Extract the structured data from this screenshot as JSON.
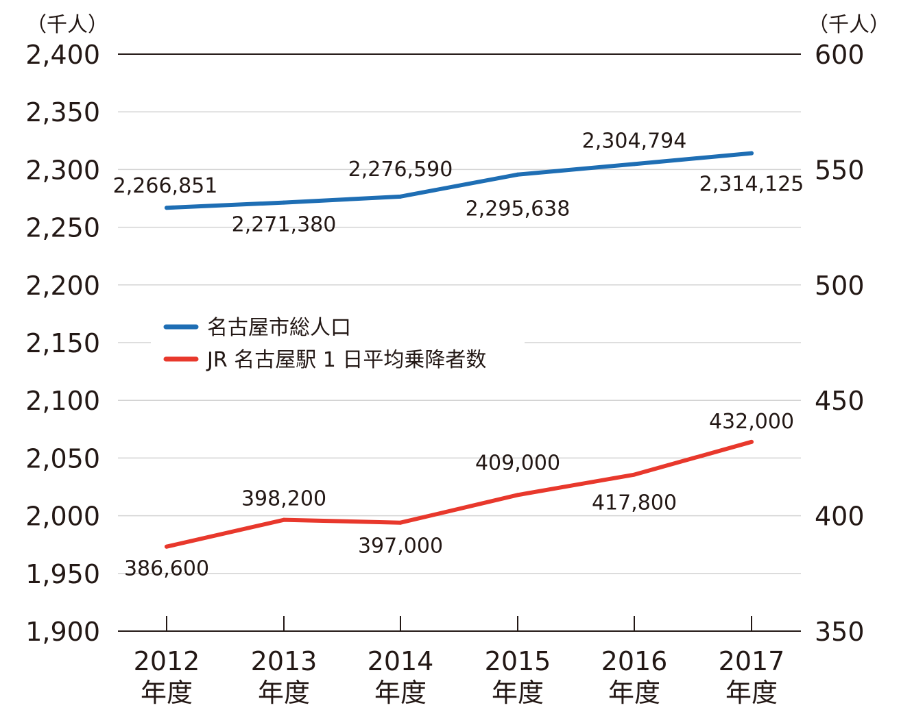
{
  "chart_data": {
    "type": "line",
    "left_unit": "（千人）",
    "right_unit": "（千人）",
    "categories": [
      "2012",
      "2013",
      "2014",
      "2015",
      "2016",
      "2017"
    ],
    "category_suffix": "年度",
    "left_axis": {
      "ylim": [
        1900,
        2400
      ],
      "ticks": [
        1900,
        1950,
        2000,
        2050,
        2100,
        2150,
        2200,
        2250,
        2300,
        2350,
        2400
      ],
      "tick_labels": [
        "1,900",
        "1,950",
        "2,000",
        "2,050",
        "2,100",
        "2,150",
        "2,200",
        "2,250",
        "2,300",
        "2,350",
        "2,400"
      ]
    },
    "right_axis": {
      "ylim": [
        350,
        600
      ],
      "ticks": [
        350,
        400,
        450,
        500,
        550,
        600
      ],
      "tick_labels": [
        "350",
        "400",
        "450",
        "500",
        "550",
        "600"
      ]
    },
    "grid": true,
    "legend_position": "center-left",
    "series": [
      {
        "name": "名古屋市総人口",
        "axis": "left",
        "color": "#1e6eb4",
        "values": [
          2266.851,
          2271.38,
          2276.59,
          2295.638,
          2304.794,
          2314.125
        ],
        "labels": [
          "2,266,851",
          "2,271,380",
          "2,276,590",
          "2,295,638",
          "2,304,794",
          "2,314,125"
        ]
      },
      {
        "name": "JR 名古屋駅 1 日平均乗降者数",
        "axis": "right",
        "color": "#e8382c",
        "values": [
          386.6,
          398.2,
          397.0,
          409.0,
          417.8,
          432.0
        ],
        "labels": [
          "386,600",
          "398,200",
          "397,000",
          "409,000",
          "417,800",
          "432,000"
        ]
      }
    ]
  }
}
